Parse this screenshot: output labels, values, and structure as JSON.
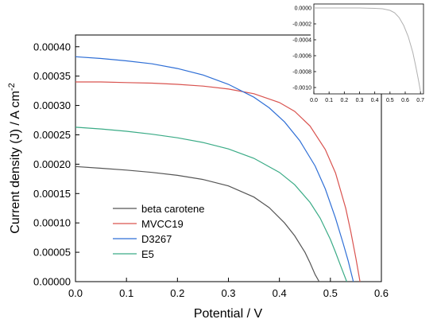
{
  "chart_data": [
    {
      "type": "line",
      "xlabel": "Potential / V",
      "ylabel": "Current density (J) / A cm",
      "ylabel_exponent": "-2",
      "xlim": [
        0.0,
        0.6
      ],
      "ylim": [
        0.0,
        0.00042
      ],
      "x_ticks": [
        0.0,
        0.1,
        0.2,
        0.3,
        0.4,
        0.5,
        0.6
      ],
      "x_tick_labels": [
        "0.0",
        "0.1",
        "0.2",
        "0.3",
        "0.4",
        "0.5",
        "0.6"
      ],
      "y_ticks": [
        0.0,
        5e-05,
        0.0001,
        0.00015,
        0.0002,
        0.00025,
        0.0003,
        0.00035,
        0.0004
      ],
      "y_tick_labels": [
        "0.00000",
        "0.00005",
        "0.00010",
        "0.00015",
        "0.00020",
        "0.00025",
        "0.00030",
        "0.00035",
        "0.00040"
      ],
      "grid": false,
      "legend_position": "bottom-left",
      "series": [
        {
          "name": "beta carotene",
          "color": "#555555",
          "x": [
            0.0,
            0.05,
            0.1,
            0.15,
            0.2,
            0.25,
            0.3,
            0.35,
            0.38,
            0.41,
            0.43,
            0.45,
            0.46,
            0.47,
            0.478
          ],
          "y": [
            0.000196,
            0.000193,
            0.00019,
            0.000186,
            0.000181,
            0.000174,
            0.000163,
            0.000144,
            0.000126,
            0.0001,
            7.8e-05,
            5e-05,
            3.2e-05,
            1.2e-05,
            0.0
          ]
        },
        {
          "name": "MVCC19",
          "color": "#d9534f",
          "x": [
            0.0,
            0.05,
            0.1,
            0.15,
            0.2,
            0.25,
            0.3,
            0.35,
            0.4,
            0.43,
            0.46,
            0.49,
            0.51,
            0.53,
            0.54,
            0.55,
            0.558
          ],
          "y": [
            0.00034,
            0.00034,
            0.000339,
            0.000338,
            0.000336,
            0.000333,
            0.000328,
            0.00032,
            0.000305,
            0.00029,
            0.000265,
            0.000225,
            0.000185,
            0.000125,
            8.5e-05,
            4e-05,
            0.0
          ]
        },
        {
          "name": "D3267",
          "color": "#2f6fd6",
          "x": [
            0.0,
            0.05,
            0.1,
            0.15,
            0.2,
            0.25,
            0.3,
            0.35,
            0.38,
            0.41,
            0.44,
            0.47,
            0.49,
            0.51,
            0.525,
            0.535,
            0.545
          ],
          "y": [
            0.000383,
            0.00038,
            0.000376,
            0.000371,
            0.000363,
            0.000352,
            0.000336,
            0.000314,
            0.000296,
            0.000272,
            0.00024,
            0.000197,
            0.000158,
            0.000108,
            6.5e-05,
            3.5e-05,
            0.0
          ]
        },
        {
          "name": "E5",
          "color": "#3aab86",
          "x": [
            0.0,
            0.05,
            0.1,
            0.15,
            0.2,
            0.25,
            0.3,
            0.35,
            0.4,
            0.43,
            0.46,
            0.48,
            0.5,
            0.51,
            0.52,
            0.532
          ],
          "y": [
            0.000263,
            0.00026,
            0.000256,
            0.000251,
            0.000245,
            0.000237,
            0.000226,
            0.00021,
            0.000186,
            0.000165,
            0.000135,
            0.000108,
            7.2e-05,
            5e-05,
            2.7e-05,
            0.0
          ]
        }
      ]
    },
    {
      "type": "line",
      "xlim": [
        0.0,
        0.72
      ],
      "ylim": [
        -0.00108,
        5e-05
      ],
      "x_ticks": [
        0.0,
        0.1,
        0.2,
        0.3,
        0.4,
        0.5,
        0.6,
        0.7
      ],
      "x_tick_labels": [
        "0.0",
        "0.1",
        "0.2",
        "0.3",
        "0.4",
        "0.5",
        "0.6",
        "0.7"
      ],
      "y_ticks": [
        0.0,
        -0.0002,
        -0.0004,
        -0.0006,
        -0.0008,
        -0.001
      ],
      "y_tick_labels": [
        "0.0000",
        "-0.0002",
        "-0.0004",
        "-0.0006",
        "-0.0008",
        "-0.0010"
      ],
      "grid": false,
      "series": [
        {
          "color": "#b0b0b0",
          "x": [
            0.0,
            0.1,
            0.2,
            0.3,
            0.4,
            0.45,
            0.5,
            0.53,
            0.56,
            0.59,
            0.62,
            0.65,
            0.67,
            0.69,
            0.7
          ],
          "y": [
            0.0,
            0.0,
            0.0,
            0.0,
            -5e-06,
            -1e-05,
            -3e-05,
            -6e-05,
            -0.00012,
            -0.00022,
            -0.00036,
            -0.00056,
            -0.00074,
            -0.00094,
            -0.00105
          ]
        }
      ]
    }
  ]
}
